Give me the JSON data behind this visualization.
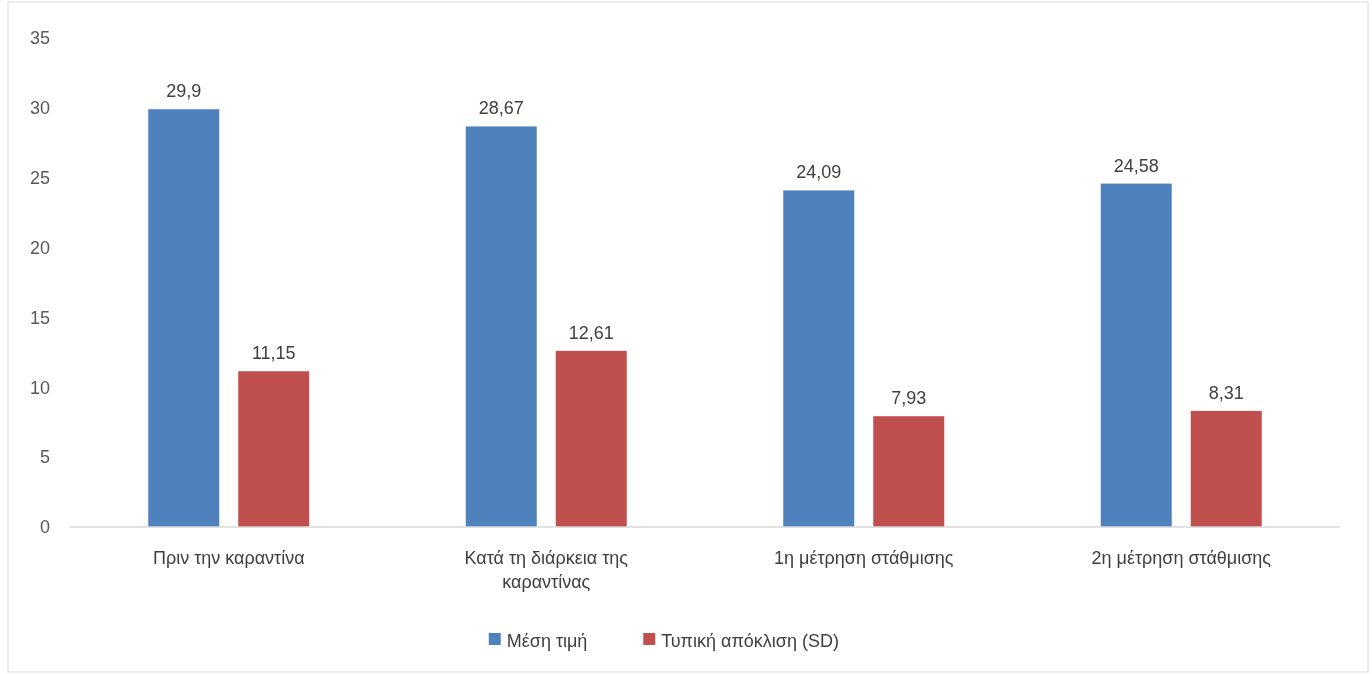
{
  "chart_data": {
    "type": "bar",
    "categories": [
      "Πριν την καραντίνα",
      "Κατά τη διάρκεια της καραντίνας",
      "1η μέτρηση στάθμισης",
      "2η μέτρηση στάθμισης"
    ],
    "series": [
      {
        "name": "Μέση τιμή",
        "color": "#4f81bd",
        "values": [
          29.9,
          28.67,
          24.09,
          24.58
        ],
        "value_labels": [
          "29,9",
          "28,67",
          "24,09",
          "24,58"
        ]
      },
      {
        "name": "Τυπική απόκλιση (SD)",
        "color": "#c0504d",
        "values": [
          11.15,
          12.61,
          7.93,
          8.31
        ],
        "value_labels": [
          "11,15",
          "12,61",
          "7,93",
          "8,31"
        ]
      }
    ],
    "ylim": [
      0,
      35
    ],
    "yticks": [
      0,
      5,
      10,
      15,
      20,
      25,
      30,
      35
    ],
    "grid": false,
    "legend": "bottom"
  }
}
